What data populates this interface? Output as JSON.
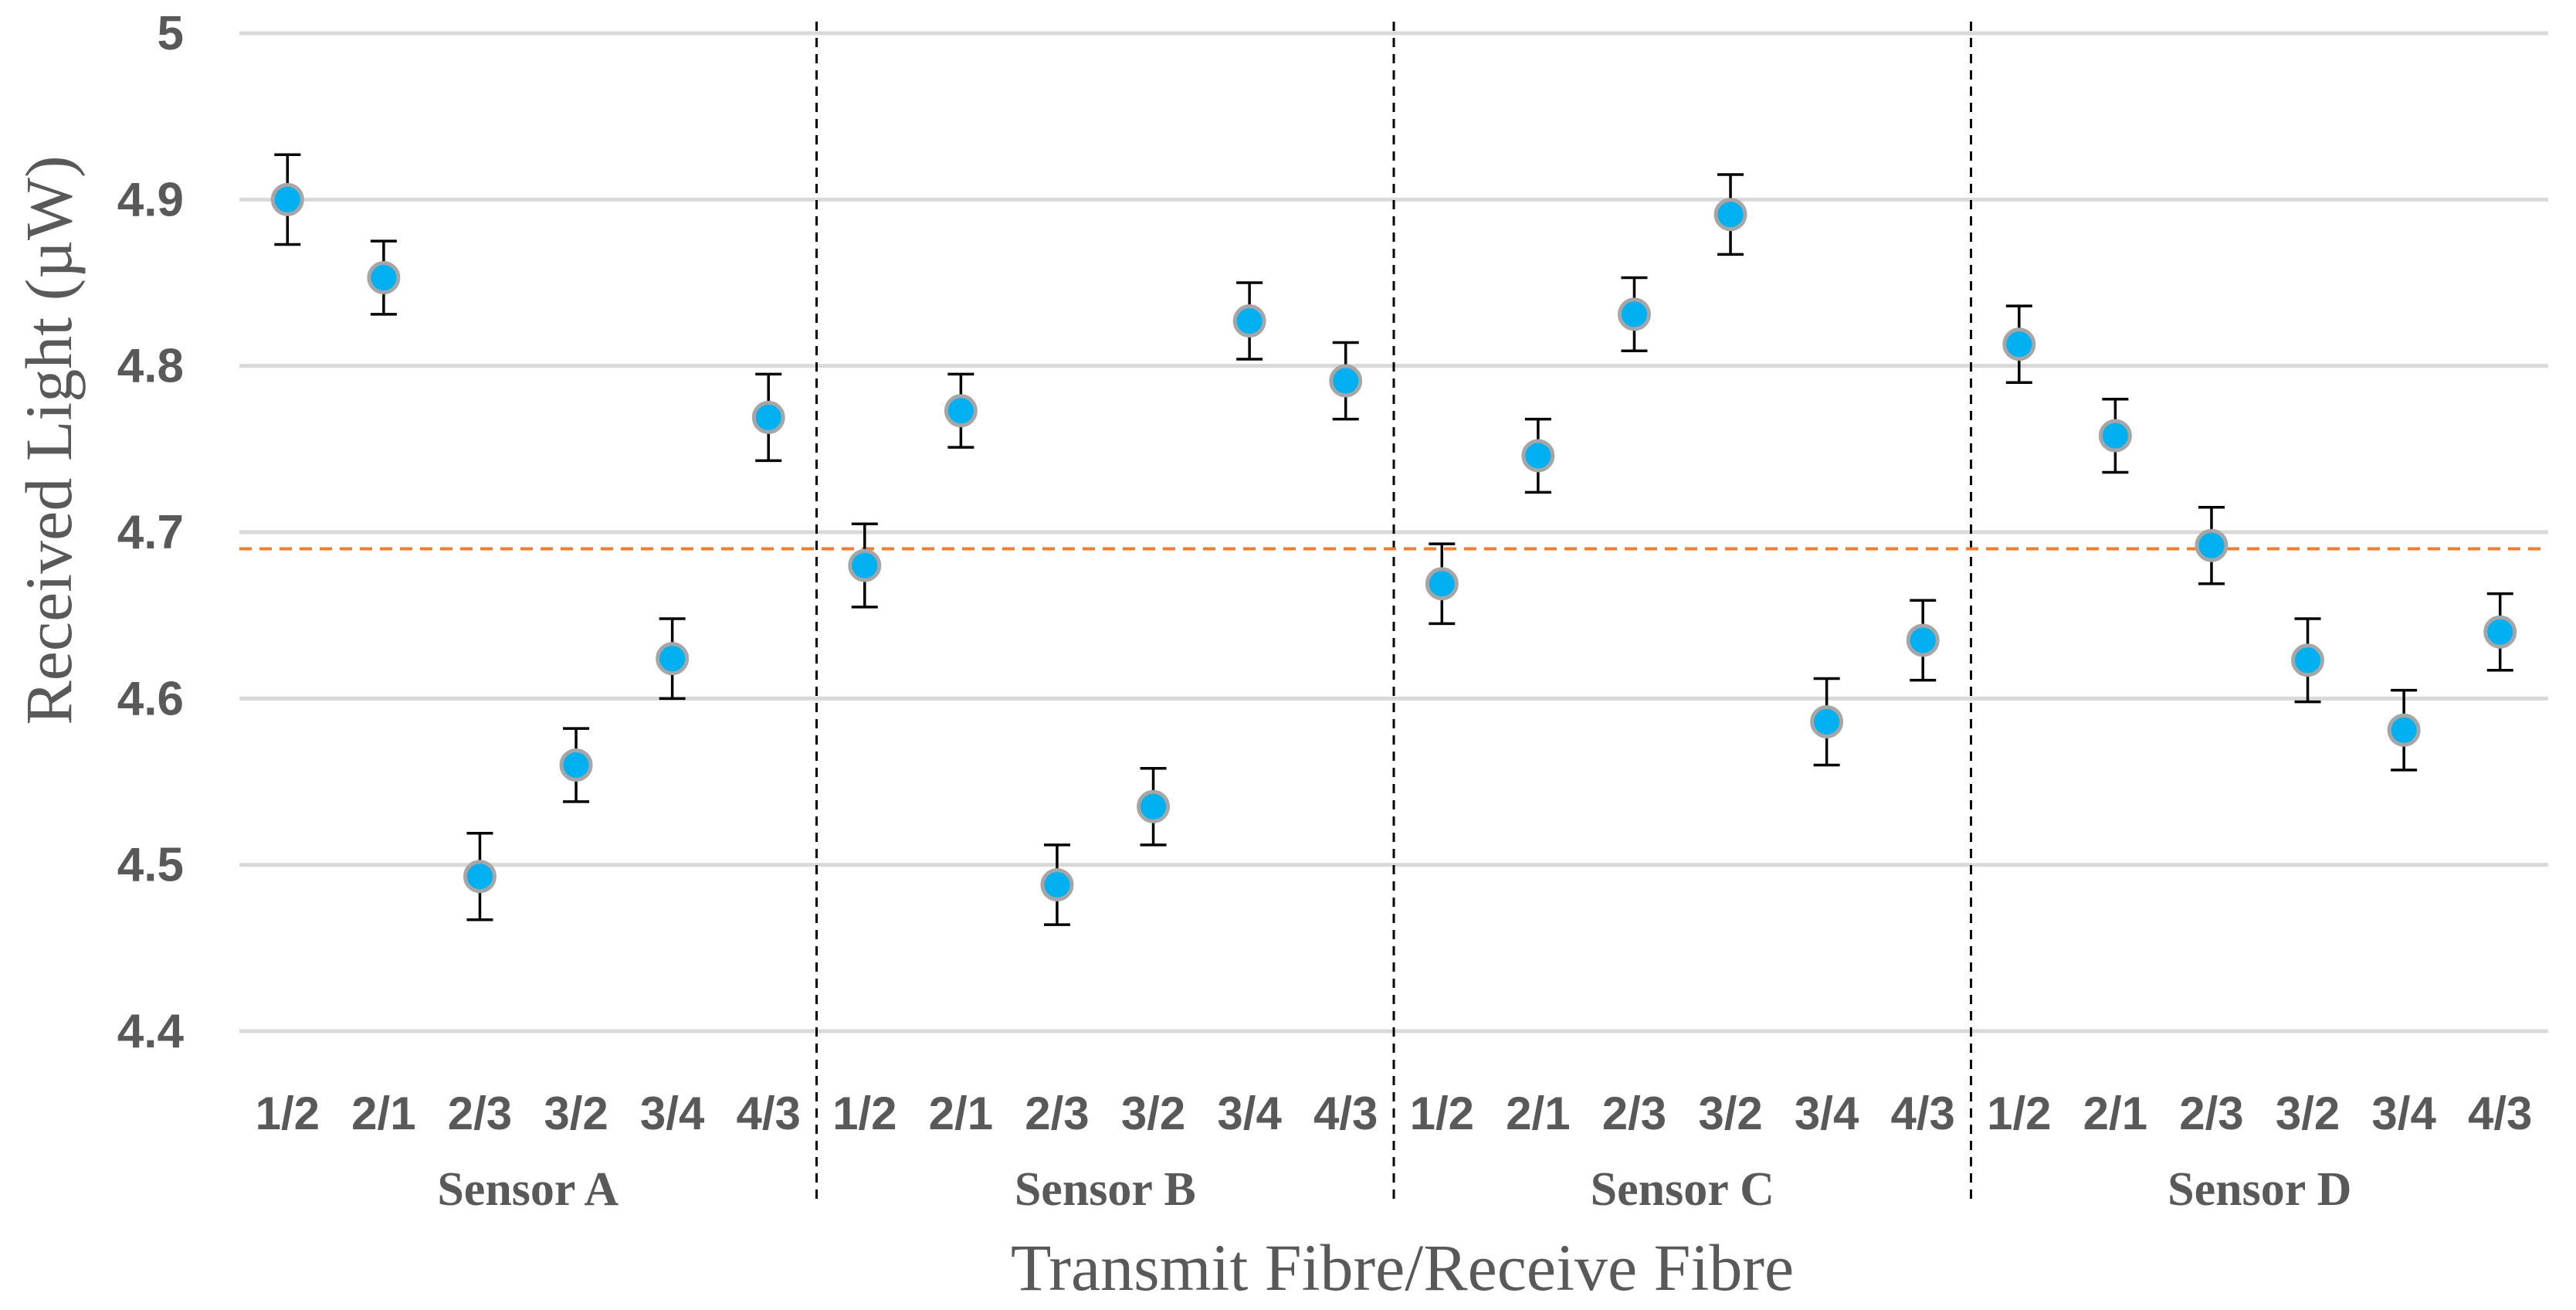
{
  "chart_data": {
    "type": "scatter",
    "xlabel": "Transmit Fibre/Receive Fibre",
    "ylabel": "Received Light (µW)",
    "ylim": [
      4.4,
      5.0
    ],
    "yticks": [
      "4.4",
      "4.5",
      "4.6",
      "4.7",
      "4.8",
      "4.9",
      "5"
    ],
    "grid": true,
    "reference_line": {
      "value": 4.69,
      "style": "dashed",
      "color": "#ed7d31"
    },
    "marker_color": "#00b0f0",
    "marker_edge_color": "#a6a6a6",
    "groups": [
      {
        "name": "Sensor A",
        "categories": [
          "1/2",
          "2/1",
          "2/3",
          "3/2",
          "3/4",
          "4/3"
        ],
        "values": [
          4.9,
          4.853,
          4.493,
          4.56,
          4.624,
          4.769
        ],
        "errors": [
          0.027,
          0.022,
          0.026,
          0.022,
          0.024,
          0.026
        ]
      },
      {
        "name": "Sensor B",
        "categories": [
          "1/2",
          "2/1",
          "2/3",
          "3/2",
          "3/4",
          "4/3"
        ],
        "values": [
          4.68,
          4.773,
          4.488,
          4.535,
          4.827,
          4.791
        ],
        "errors": [
          0.025,
          0.022,
          0.024,
          0.023,
          0.023,
          0.023
        ]
      },
      {
        "name": "Sensor C",
        "categories": [
          "1/2",
          "2/1",
          "2/3",
          "3/2",
          "3/4",
          "4/3"
        ],
        "values": [
          4.669,
          4.746,
          4.831,
          4.891,
          4.586,
          4.635
        ],
        "errors": [
          0.024,
          0.022,
          0.022,
          0.024,
          0.026,
          0.024
        ]
      },
      {
        "name": "Sensor D",
        "categories": [
          "1/2",
          "2/1",
          "2/3",
          "3/2",
          "3/4",
          "4/3"
        ],
        "values": [
          4.813,
          4.758,
          4.692,
          4.623,
          4.581,
          4.64
        ],
        "errors": [
          0.023,
          0.022,
          0.023,
          0.025,
          0.024,
          0.023
        ]
      }
    ]
  }
}
